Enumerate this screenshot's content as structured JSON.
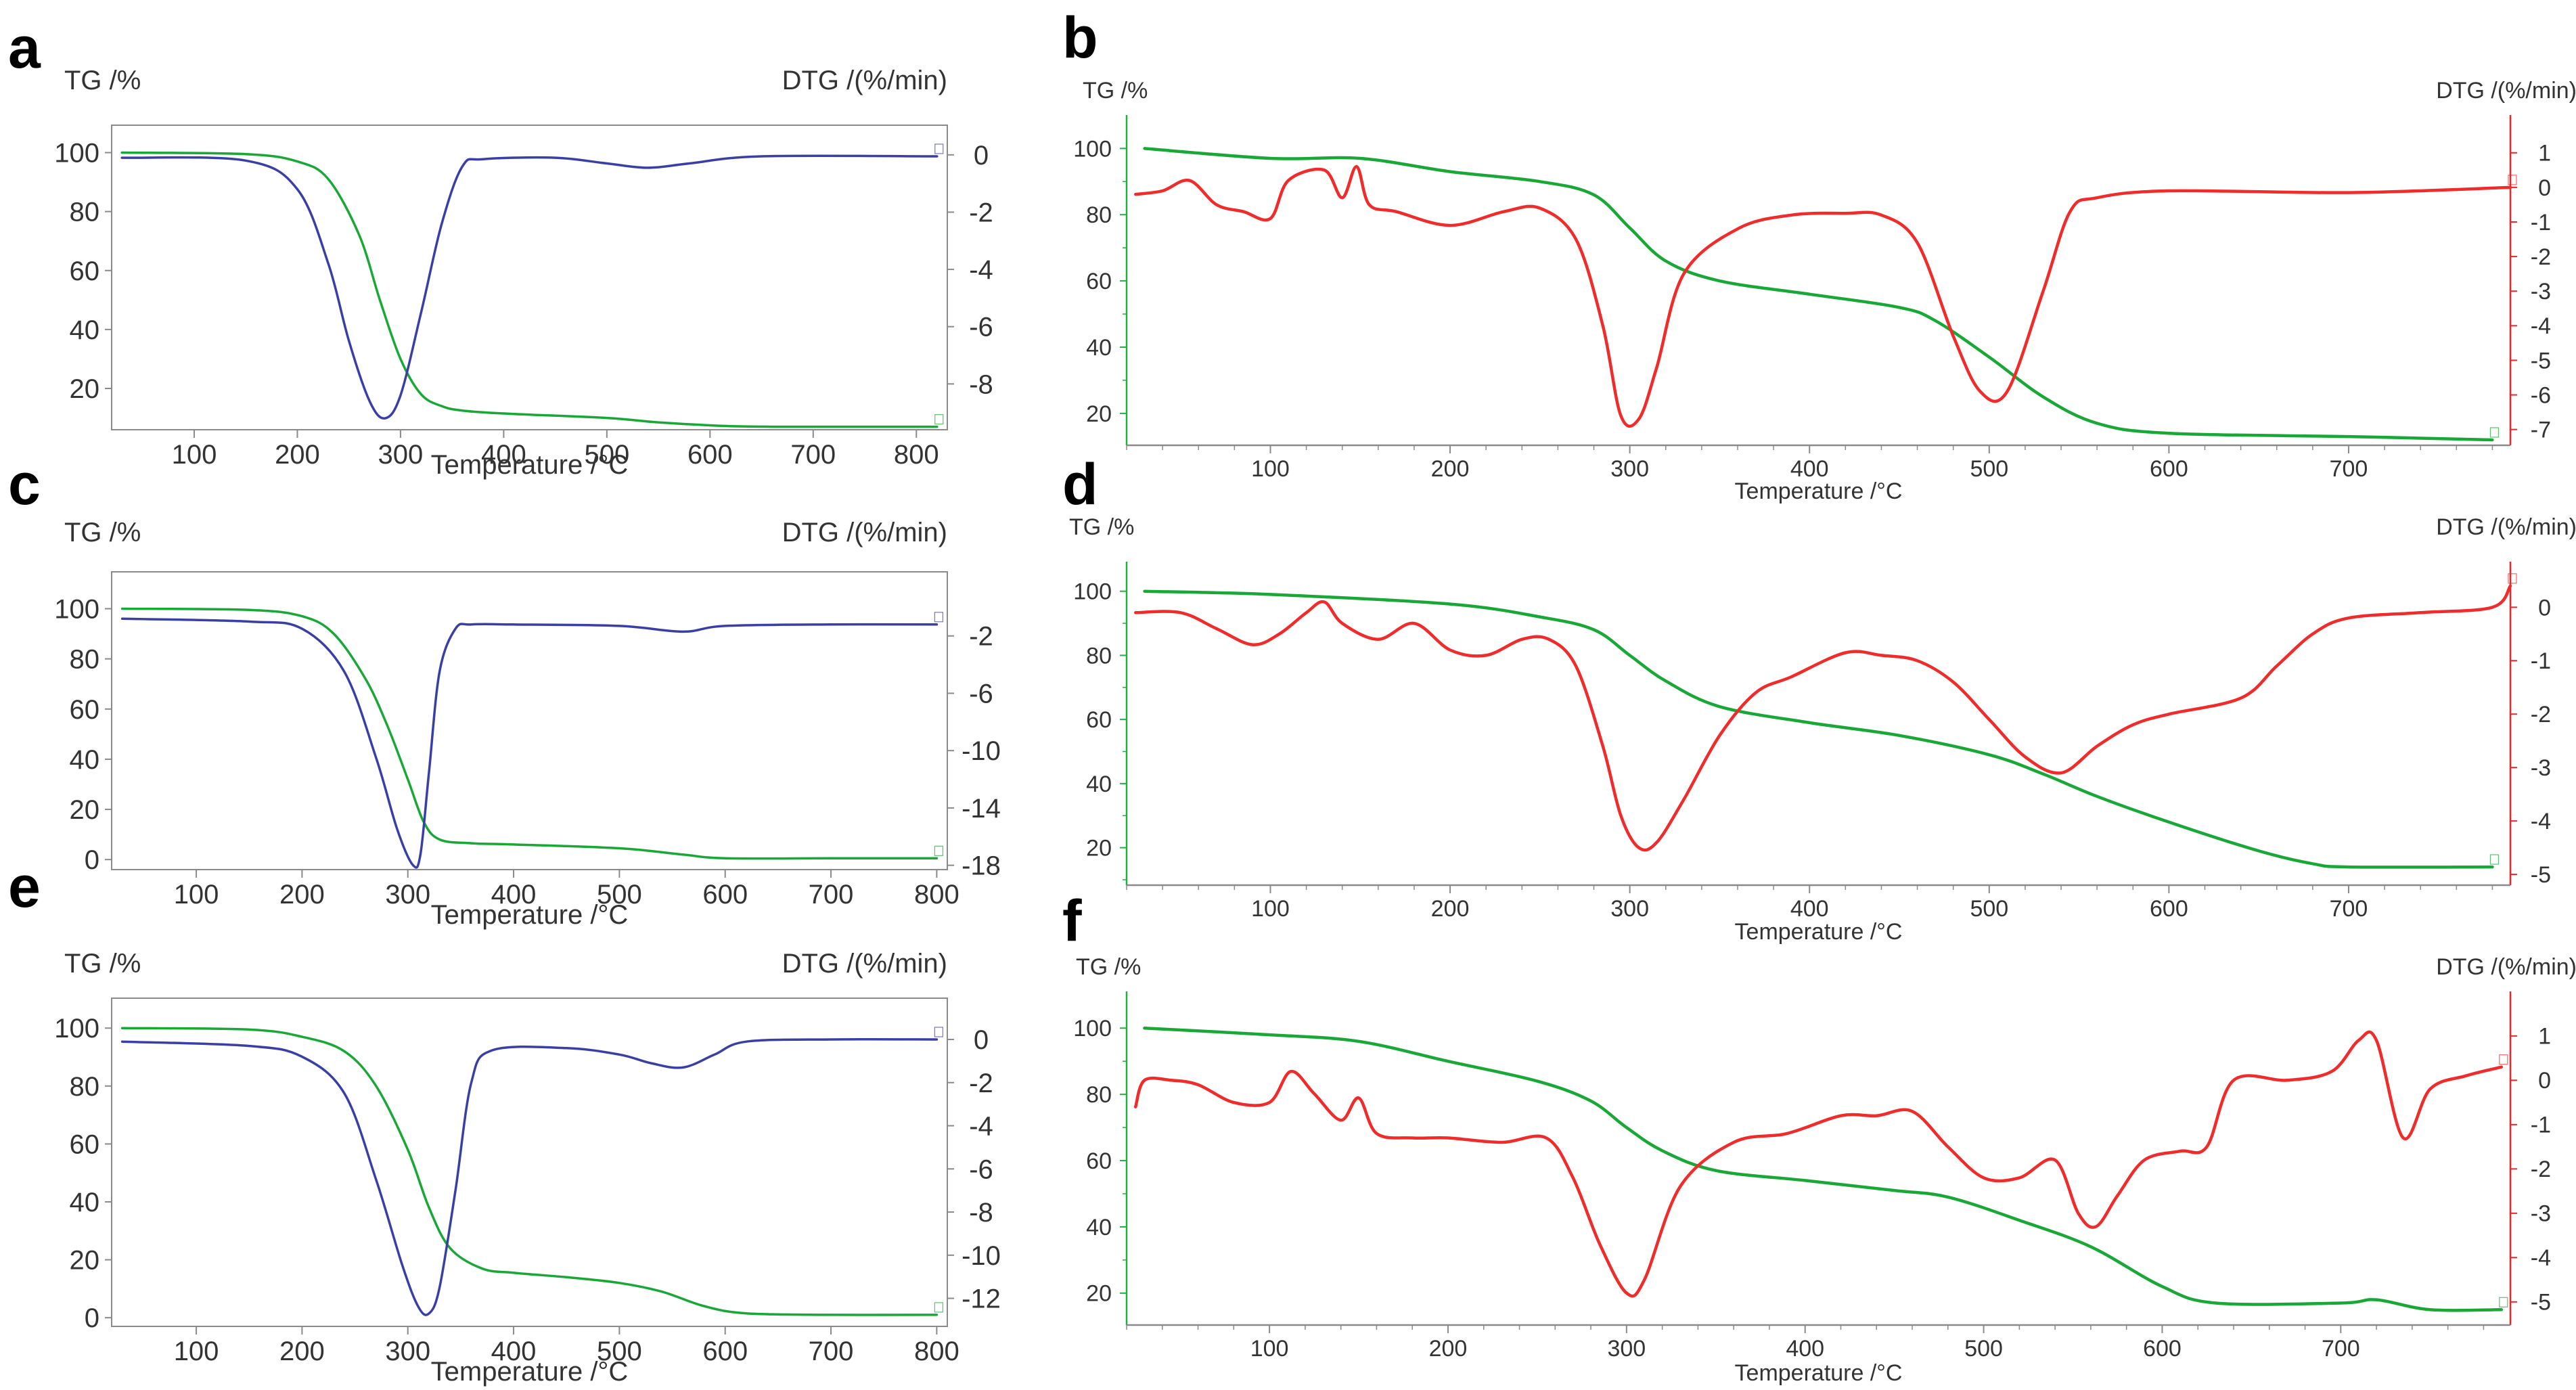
{
  "colors": {
    "green": "#18A836",
    "blue": "#3A3FA8",
    "red": "#F12A2A",
    "axis_left": "#1FB040",
    "axis_right_blue": "#3A3FA8",
    "axis_right_red": "#EE2525",
    "text": "#333333"
  },
  "chart_data": [
    {
      "panel": "a",
      "type": "line",
      "title": "",
      "xlabel": "Temperature /°C",
      "ylabel_left": "TG /%",
      "ylabel_right": "DTG /(%/min)",
      "xlim": [
        20,
        830
      ],
      "xticks": [
        100,
        200,
        300,
        400,
        500,
        600,
        700,
        800
      ],
      "ylim_left": [
        6,
        107
      ],
      "yticks_left": [
        20,
        40,
        60,
        80,
        100
      ],
      "ylim_right": [
        -9.6,
        0.8
      ],
      "yticks_right": [
        0,
        -2,
        -4,
        -6,
        -8
      ],
      "grid": false,
      "series": [
        {
          "axis": "left",
          "color": "green",
          "x": [
            30,
            150,
            200,
            230,
            260,
            280,
            300,
            320,
            340,
            360,
            400,
            500,
            550,
            620,
            700,
            820
          ],
          "y": [
            100,
            99.5,
            97,
            91,
            72,
            50,
            30,
            18,
            14,
            12.5,
            11.5,
            10,
            8.5,
            7.2,
            7,
            7
          ]
        },
        {
          "axis": "right",
          "color": "blue",
          "x": [
            30,
            150,
            200,
            230,
            250,
            270,
            285,
            300,
            320,
            340,
            360,
            380,
            450,
            500,
            540,
            580,
            650,
            820
          ],
          "y": [
            -0.1,
            -0.2,
            -1.2,
            -3.8,
            -6.5,
            -8.6,
            -9.2,
            -8.4,
            -5.5,
            -2.4,
            -0.4,
            -0.15,
            -0.1,
            -0.3,
            -0.45,
            -0.3,
            -0.05,
            -0.05
          ]
        }
      ]
    },
    {
      "panel": "b",
      "type": "line",
      "title": "",
      "xlabel": "Temperature /°C",
      "ylabel_left": "TG /%",
      "ylabel_right": "DTG /(%/min)",
      "xlim": [
        20,
        790
      ],
      "xticks": [
        100,
        200,
        300,
        400,
        500,
        600,
        700
      ],
      "ylim_left": [
        12,
        106
      ],
      "yticks_left": [
        20,
        40,
        60,
        80,
        100
      ],
      "ylim_right": [
        -7.3,
        1.7
      ],
      "yticks_right": [
        1,
        0,
        -1,
        -2,
        -3,
        -4,
        -5,
        -6,
        -7
      ],
      "grid": false,
      "series": [
        {
          "axis": "left",
          "color": "green",
          "x": [
            30,
            100,
            150,
            200,
            250,
            280,
            300,
            320,
            350,
            400,
            450,
            470,
            500,
            530,
            560,
            600,
            700,
            780
          ],
          "y": [
            100,
            97,
            97,
            93,
            90,
            86,
            76,
            66,
            60,
            56,
            52,
            48,
            37,
            25,
            17,
            14,
            13,
            12
          ]
        },
        {
          "axis": "right",
          "color": "red",
          "x": [
            25,
            40,
            55,
            70,
            85,
            100,
            110,
            130,
            140,
            148,
            155,
            170,
            200,
            230,
            250,
            270,
            285,
            295,
            305,
            315,
            330,
            360,
            390,
            420,
            440,
            460,
            480,
            495,
            510,
            530,
            545,
            560,
            600,
            700,
            790
          ],
          "y": [
            -0.2,
            -0.1,
            0.2,
            -0.5,
            -0.7,
            -0.9,
            0.2,
            0.5,
            -0.3,
            0.6,
            -0.5,
            -0.7,
            -1.1,
            -0.7,
            -0.6,
            -1.5,
            -4.0,
            -6.6,
            -6.7,
            -5.2,
            -2.5,
            -1.2,
            -0.8,
            -0.75,
            -0.8,
            -1.6,
            -4.3,
            -5.9,
            -5.9,
            -3.0,
            -0.7,
            -0.3,
            -0.1,
            -0.15,
            0.0
          ]
        }
      ]
    },
    {
      "panel": "c",
      "type": "line",
      "title": "",
      "xlabel": "Temperature /°C",
      "ylabel_left": "TG /%",
      "ylabel_right": "DTG /(%/min)",
      "xlim": [
        20,
        810
      ],
      "xticks": [
        100,
        200,
        300,
        400,
        500,
        600,
        700,
        800
      ],
      "ylim_left": [
        -4,
        112
      ],
      "yticks_left": [
        0,
        20,
        40,
        60,
        80,
        100
      ],
      "ylim_right": [
        -18.3,
        2
      ],
      "yticks_right": [
        -2,
        -6,
        -10,
        -14,
        -18
      ],
      "grid": false,
      "series": [
        {
          "axis": "left",
          "color": "green",
          "x": [
            30,
            150,
            200,
            230,
            260,
            280,
            300,
            315,
            330,
            360,
            400,
            500,
            560,
            600,
            700,
            800
          ],
          "y": [
            100,
            99.5,
            97,
            90,
            72,
            54,
            32,
            15,
            8,
            6.5,
            6,
            4.5,
            2,
            0.5,
            0.5,
            0.5
          ]
        },
        {
          "axis": "right",
          "color": "blue",
          "x": [
            30,
            150,
            200,
            240,
            270,
            290,
            305,
            312,
            320,
            330,
            345,
            360,
            400,
            500,
            560,
            600,
            700,
            800
          ],
          "y": [
            -0.8,
            -1.0,
            -1.5,
            -4.5,
            -10.5,
            -15.5,
            -18.0,
            -17.2,
            -11.5,
            -4.5,
            -1.5,
            -1.2,
            -1.2,
            -1.3,
            -1.7,
            -1.3,
            -1.2,
            -1.2
          ]
        }
      ]
    },
    {
      "panel": "d",
      "type": "line",
      "title": "",
      "xlabel": "Temperature /°C",
      "ylabel_left": "TG /%",
      "ylabel_right": "DTG /(%/min)",
      "xlim": [
        20,
        790
      ],
      "xticks": [
        100,
        200,
        300,
        400,
        500,
        600,
        700
      ],
      "ylim_left": [
        10,
        105
      ],
      "yticks_left": [
        20,
        40,
        60,
        80,
        100
      ],
      "ylim_right": [
        -5.1,
        0.6
      ],
      "yticks_right": [
        0,
        -1,
        -2,
        -3,
        -4,
        -5
      ],
      "grid": false,
      "series": [
        {
          "axis": "left",
          "color": "green",
          "x": [
            30,
            100,
            200,
            250,
            280,
            300,
            320,
            350,
            400,
            450,
            500,
            530,
            560,
            600,
            650,
            680,
            700,
            780
          ],
          "y": [
            100,
            99,
            96,
            92,
            88,
            80,
            72,
            64,
            59,
            55,
            49,
            43,
            36,
            28,
            19,
            15,
            14,
            14
          ]
        },
        {
          "axis": "right",
          "color": "red",
          "x": [
            25,
            50,
            70,
            90,
            105,
            120,
            130,
            140,
            160,
            180,
            200,
            220,
            240,
            255,
            270,
            285,
            295,
            305,
            315,
            330,
            350,
            370,
            390,
            420,
            440,
            460,
            480,
            500,
            520,
            540,
            560,
            580,
            600,
            640,
            660,
            680,
            700,
            740,
            780,
            790
          ],
          "y": [
            -0.1,
            -0.1,
            -0.4,
            -0.7,
            -0.5,
            -0.1,
            0.1,
            -0.3,
            -0.6,
            -0.3,
            -0.8,
            -0.9,
            -0.6,
            -0.6,
            -1.1,
            -2.6,
            -3.9,
            -4.5,
            -4.4,
            -3.6,
            -2.4,
            -1.6,
            -1.3,
            -0.85,
            -0.9,
            -1.0,
            -1.4,
            -2.1,
            -2.8,
            -3.1,
            -2.6,
            -2.2,
            -2.0,
            -1.7,
            -1.1,
            -0.5,
            -0.2,
            -0.1,
            0.0,
            0.4
          ]
        }
      ]
    },
    {
      "panel": "e",
      "type": "line",
      "title": "",
      "xlabel": "Temperature /°C",
      "ylabel_left": "TG /%",
      "ylabel_right": "DTG /(%/min)",
      "xlim": [
        20,
        810
      ],
      "xticks": [
        100,
        200,
        300,
        400,
        500,
        600,
        700,
        800
      ],
      "ylim_left": [
        -3,
        108
      ],
      "yticks_left": [
        0,
        20,
        40,
        60,
        80,
        100
      ],
      "ylim_right": [
        -13.3,
        1.6
      ],
      "yticks_right": [
        0,
        -2,
        -4,
        -6,
        -8,
        -10,
        -12
      ],
      "grid": false,
      "series": [
        {
          "axis": "left",
          "color": "green",
          "x": [
            30,
            150,
            200,
            240,
            270,
            300,
            320,
            340,
            370,
            400,
            450,
            500,
            540,
            580,
            620,
            700,
            800
          ],
          "y": [
            100,
            99.5,
            97,
            92,
            80,
            58,
            38,
            24,
            17,
            15.5,
            14,
            12,
            9,
            4,
            1.5,
            1,
            1
          ]
        },
        {
          "axis": "right",
          "color": "blue",
          "x": [
            30,
            150,
            200,
            240,
            270,
            295,
            310,
            320,
            330,
            345,
            360,
            380,
            450,
            500,
            530,
            560,
            590,
            620,
            700,
            800
          ],
          "y": [
            -0.1,
            -0.3,
            -0.8,
            -2.5,
            -6.5,
            -10.5,
            -12.4,
            -12.7,
            -11.5,
            -7.0,
            -2.0,
            -0.5,
            -0.4,
            -0.7,
            -1.1,
            -1.3,
            -0.7,
            -0.1,
            0.0,
            0.0
          ]
        }
      ]
    },
    {
      "panel": "f",
      "type": "line",
      "title": "",
      "xlabel": "Temperature /°C",
      "ylabel_left": "TG /%",
      "ylabel_right": "DTG /(%/min)",
      "xlim": [
        20,
        795
      ],
      "xticks": [
        100,
        200,
        300,
        400,
        500,
        600,
        700
      ],
      "ylim_left": [
        12,
        107
      ],
      "yticks_left": [
        20,
        40,
        60,
        80,
        100
      ],
      "ylim_right": [
        -5.4,
        1.7
      ],
      "yticks_right": [
        1,
        0,
        -1,
        -2,
        -3,
        -4,
        -5
      ],
      "grid": false,
      "series": [
        {
          "axis": "left",
          "color": "green",
          "x": [
            30,
            100,
            150,
            200,
            250,
            280,
            300,
            320,
            350,
            400,
            450,
            480,
            520,
            560,
            600,
            630,
            700,
            720,
            750,
            790
          ],
          "y": [
            100,
            98,
            96,
            90,
            84,
            78,
            70,
            63,
            57,
            54,
            51,
            49,
            42,
            34,
            22,
            17,
            17,
            18,
            15,
            15
          ]
        },
        {
          "axis": "right",
          "color": "red",
          "x": [
            25,
            30,
            45,
            60,
            80,
            100,
            112,
            125,
            140,
            150,
            160,
            180,
            200,
            230,
            255,
            270,
            285,
            300,
            310,
            330,
            360,
            390,
            420,
            440,
            460,
            480,
            500,
            520,
            540,
            553,
            563,
            575,
            590,
            610,
            625,
            640,
            670,
            695,
            710,
            720,
            735,
            750,
            770,
            790
          ],
          "y": [
            -0.6,
            0.0,
            0.0,
            -0.1,
            -0.5,
            -0.5,
            0.2,
            -0.3,
            -0.9,
            -0.4,
            -1.2,
            -1.3,
            -1.3,
            -1.4,
            -1.3,
            -2.2,
            -3.7,
            -4.8,
            -4.5,
            -2.4,
            -1.4,
            -1.2,
            -0.8,
            -0.8,
            -0.7,
            -1.5,
            -2.2,
            -2.2,
            -1.8,
            -3.0,
            -3.3,
            -2.6,
            -1.8,
            -1.6,
            -1.5,
            0.0,
            0.0,
            0.2,
            0.9,
            0.9,
            -1.3,
            -0.2,
            0.1,
            0.3
          ]
        }
      ]
    }
  ]
}
